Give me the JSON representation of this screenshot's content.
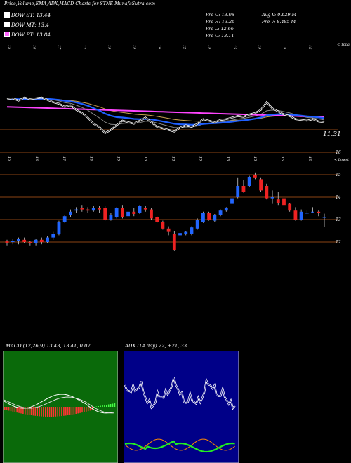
{
  "header": {
    "title": "Price,Volume,EMA,ADX,MACD Charts for STNE MunafaSutra.com"
  },
  "legend": [
    {
      "label": "DOW ST: 13.44",
      "color": "#ffffff"
    },
    {
      "label": "DOW MT: 13.4",
      "color": "#ffffff"
    },
    {
      "label": "DOW PT: 13.84",
      "color": "#ff66ff"
    }
  ],
  "stats": {
    "prev_open": "Pre  O: 13.08",
    "prev_high": "Pre  H: 13.26",
    "prev_low": "Pre  L: 12.66",
    "prev_close": "Pre  C: 13.11",
    "avg_volume": "Avg V: 0.629 M",
    "prev_volume": "Pre  V: 8.485 M"
  },
  "panel1": {
    "tag": "< Topa",
    "top_dates": [
      "15",
      "16",
      "17",
      "17",
      "15",
      "15",
      "16",
      "12",
      "15",
      "15",
      "15",
      "15",
      "16"
    ],
    "price_label": "11.31",
    "colors": {
      "ema_short": "#ffffff",
      "ema_mid": "#1f5fff",
      "ema_long": "#ff44ff",
      "ema_other": "#c8a050",
      "ref": "#8b4513"
    }
  },
  "panel2": {
    "tag": "< Lowst",
    "top_dates": [
      "15",
      "16",
      "17",
      "15",
      "15",
      "15",
      "12",
      "15",
      "15",
      "15",
      "15",
      "15"
    ],
    "y_ticks": [
      "16",
      "15",
      "14",
      "13",
      "12"
    ]
  },
  "macd": {
    "title": "MACD (12,26,9) 13.43, 13.41, 0.02",
    "colors": {
      "hist": "#ff3333",
      "line": "#ffffff",
      "signal": "#ffffff",
      "bg": "#0a6a0a"
    }
  },
  "adx": {
    "title": "ADX (14 day) 22, +21, 33",
    "colors": {
      "adx": "#ffffff",
      "plus": "#22ee22",
      "minus": "#ff8800",
      "bg": "#000088"
    }
  },
  "chart_data": {
    "type": "candlestick",
    "y_ticks": [
      16,
      15,
      14,
      13,
      12
    ],
    "ylim": [
      11.4,
      16.1
    ],
    "candles": [
      {
        "o": 12.05,
        "h": 12.1,
        "l": 11.85,
        "c": 11.95
      },
      {
        "o": 12.0,
        "h": 12.15,
        "l": 11.9,
        "c": 12.05
      },
      {
        "o": 12.05,
        "h": 12.2,
        "l": 11.9,
        "c": 12.15
      },
      {
        "o": 12.1,
        "h": 12.2,
        "l": 11.95,
        "c": 12.0
      },
      {
        "o": 12.0,
        "h": 12.05,
        "l": 11.85,
        "c": 11.95
      },
      {
        "o": 11.95,
        "h": 12.15,
        "l": 11.85,
        "c": 12.1
      },
      {
        "o": 12.1,
        "h": 12.2,
        "l": 11.9,
        "c": 12.0
      },
      {
        "o": 12.0,
        "h": 12.25,
        "l": 11.95,
        "c": 12.2
      },
      {
        "o": 12.2,
        "h": 12.45,
        "l": 12.1,
        "c": 12.35
      },
      {
        "o": 12.35,
        "h": 12.95,
        "l": 12.3,
        "c": 12.9
      },
      {
        "o": 12.9,
        "h": 13.2,
        "l": 12.85,
        "c": 13.15
      },
      {
        "o": 13.2,
        "h": 13.45,
        "l": 13.1,
        "c": 13.35
      },
      {
        "o": 13.4,
        "h": 13.55,
        "l": 13.3,
        "c": 13.45
      },
      {
        "o": 13.5,
        "h": 13.65,
        "l": 13.35,
        "c": 13.45
      },
      {
        "o": 13.45,
        "h": 13.55,
        "l": 13.3,
        "c": 13.4
      },
      {
        "o": 13.4,
        "h": 13.6,
        "l": 13.35,
        "c": 13.5
      },
      {
        "o": 13.5,
        "h": 13.6,
        "l": 13.3,
        "c": 13.45
      },
      {
        "o": 13.5,
        "h": 13.6,
        "l": 12.95,
        "c": 13.0
      },
      {
        "o": 13.0,
        "h": 13.3,
        "l": 12.95,
        "c": 13.2
      },
      {
        "o": 13.1,
        "h": 13.55,
        "l": 13.05,
        "c": 13.5
      },
      {
        "o": 13.5,
        "h": 13.65,
        "l": 13.05,
        "c": 13.1
      },
      {
        "o": 13.15,
        "h": 13.4,
        "l": 13.1,
        "c": 13.35
      },
      {
        "o": 13.35,
        "h": 13.5,
        "l": 13.15,
        "c": 13.25
      },
      {
        "o": 13.3,
        "h": 13.65,
        "l": 13.25,
        "c": 13.6
      },
      {
        "o": 13.5,
        "h": 13.6,
        "l": 13.35,
        "c": 13.45
      },
      {
        "o": 13.45,
        "h": 13.5,
        "l": 13.0,
        "c": 13.05
      },
      {
        "o": 13.1,
        "h": 13.15,
        "l": 12.85,
        "c": 12.9
      },
      {
        "o": 12.9,
        "h": 12.95,
        "l": 12.55,
        "c": 12.6
      },
      {
        "o": 12.6,
        "h": 12.7,
        "l": 12.3,
        "c": 12.45
      },
      {
        "o": 12.35,
        "h": 12.5,
        "l": 11.6,
        "c": 11.65
      },
      {
        "o": 12.3,
        "h": 12.45,
        "l": 12.2,
        "c": 12.4
      },
      {
        "o": 12.35,
        "h": 12.5,
        "l": 12.3,
        "c": 12.45
      },
      {
        "o": 12.35,
        "h": 12.7,
        "l": 12.3,
        "c": 12.65
      },
      {
        "o": 12.6,
        "h": 13.05,
        "l": 12.55,
        "c": 13.0
      },
      {
        "o": 12.9,
        "h": 13.35,
        "l": 12.85,
        "c": 13.3
      },
      {
        "o": 13.3,
        "h": 13.35,
        "l": 12.95,
        "c": 13.0
      },
      {
        "o": 12.95,
        "h": 13.25,
        "l": 12.9,
        "c": 13.2
      },
      {
        "o": 13.2,
        "h": 13.45,
        "l": 13.15,
        "c": 13.4
      },
      {
        "o": 13.4,
        "h": 13.55,
        "l": 13.35,
        "c": 13.5
      },
      {
        "o": 13.7,
        "h": 14.0,
        "l": 13.65,
        "c": 13.95
      },
      {
        "o": 14.0,
        "h": 14.85,
        "l": 13.95,
        "c": 14.5
      },
      {
        "o": 14.5,
        "h": 14.75,
        "l": 14.2,
        "c": 14.25
      },
      {
        "o": 14.5,
        "h": 14.95,
        "l": 14.45,
        "c": 14.9
      },
      {
        "o": 15.0,
        "h": 15.1,
        "l": 14.8,
        "c": 14.85
      },
      {
        "o": 14.8,
        "h": 14.85,
        "l": 14.25,
        "c": 14.3
      },
      {
        "o": 14.5,
        "h": 14.6,
        "l": 13.9,
        "c": 13.95
      },
      {
        "o": 13.95,
        "h": 14.3,
        "l": 13.7,
        "c": 14.0
      },
      {
        "o": 13.9,
        "h": 14.25,
        "l": 13.65,
        "c": 13.75
      },
      {
        "o": 13.95,
        "h": 14.0,
        "l": 13.6,
        "c": 13.65
      },
      {
        "o": 13.7,
        "h": 13.75,
        "l": 13.35,
        "c": 13.4
      },
      {
        "o": 13.4,
        "h": 13.55,
        "l": 12.95,
        "c": 13.0
      },
      {
        "o": 13.0,
        "h": 13.45,
        "l": 12.95,
        "c": 13.35
      },
      {
        "o": 13.3,
        "h": 13.4,
        "l": 13.25,
        "c": 13.3
      },
      {
        "o": 13.35,
        "h": 13.55,
        "l": 13.3,
        "c": 13.35
      },
      {
        "o": 13.35,
        "h": 13.4,
        "l": 13.15,
        "c": 13.3
      },
      {
        "o": 13.08,
        "h": 13.26,
        "l": 12.66,
        "c": 13.11
      }
    ]
  }
}
